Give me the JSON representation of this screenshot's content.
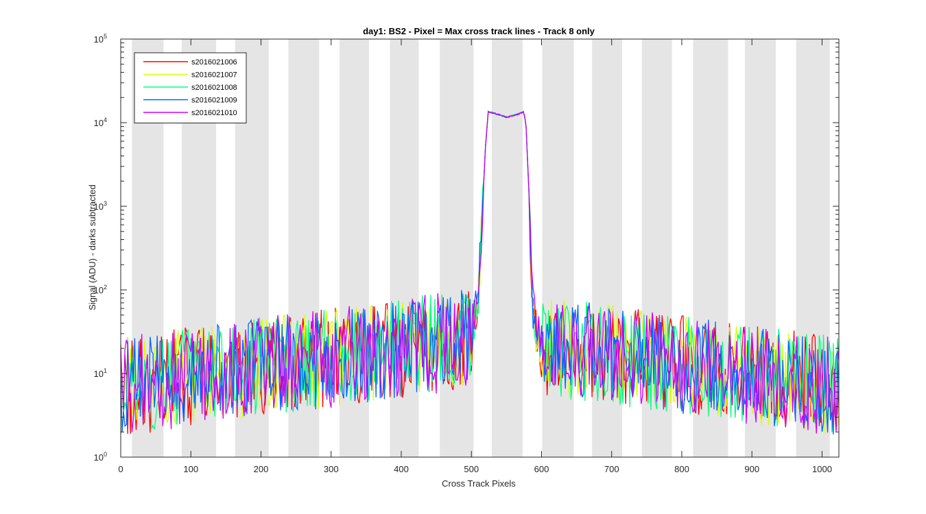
{
  "chart_data": {
    "type": "line",
    "title": "day1: BS2 - Pixel = Max cross track lines - Track 8 only",
    "xlabel": "Cross Track Pixels",
    "ylabel": "Signal (ADU) - darks subtracted",
    "xlim": [
      0,
      1024
    ],
    "ylim": [
      1,
      100000
    ],
    "yscale": "log",
    "xticks": [
      0,
      100,
      200,
      300,
      400,
      500,
      600,
      700,
      800,
      900,
      1000
    ],
    "xtick_labels": [
      "0",
      "100",
      "200",
      "300",
      "400",
      "500",
      "600",
      "700",
      "800",
      "900",
      "1000"
    ],
    "yticks": [
      1,
      10,
      100,
      1000,
      10000,
      100000
    ],
    "ytick_labels": [
      {
        "base": "10",
        "exp": "0"
      },
      {
        "base": "10",
        "exp": "1"
      },
      {
        "base": "10",
        "exp": "2"
      },
      {
        "base": "10",
        "exp": "3"
      },
      {
        "base": "10",
        "exp": "4"
      },
      {
        "base": "10",
        "exp": "5"
      }
    ],
    "grid": false,
    "legend_position": "top-left",
    "shaded_bands": [
      [
        16,
        61
      ],
      [
        87,
        136
      ],
      [
        163,
        211
      ],
      [
        239,
        283
      ],
      [
        312,
        354
      ],
      [
        384,
        425
      ],
      [
        455,
        503
      ],
      [
        529,
        573
      ],
      [
        601,
        646
      ],
      [
        672,
        715
      ],
      [
        743,
        786
      ],
      [
        816,
        866
      ],
      [
        890,
        934
      ],
      [
        963,
        1011
      ]
    ],
    "shaded_band_color": "#e5e5e5",
    "profile": {
      "description_points": [
        [
          0,
          8
        ],
        [
          500,
          30
        ],
        [
          510,
          80
        ],
        [
          516,
          1000
        ],
        [
          520,
          5000
        ],
        [
          524,
          13500
        ],
        [
          535,
          12800
        ],
        [
          550,
          11600
        ],
        [
          565,
          12500
        ],
        [
          575,
          13500
        ],
        [
          578,
          9000
        ],
        [
          582,
          1500
        ],
        [
          585,
          200
        ],
        [
          588,
          60
        ],
        [
          595,
          25
        ],
        [
          1024,
          8
        ]
      ]
    },
    "series": [
      {
        "name": "s2016021006",
        "color": "#ff0000"
      },
      {
        "name": "s2016021007",
        "color": "#d9ff00"
      },
      {
        "name": "s2016021008",
        "color": "#00ff80"
      },
      {
        "name": "s2016021009",
        "color": "#0066ff"
      },
      {
        "name": "s2016021010",
        "color": "#cc00ff"
      }
    ]
  }
}
